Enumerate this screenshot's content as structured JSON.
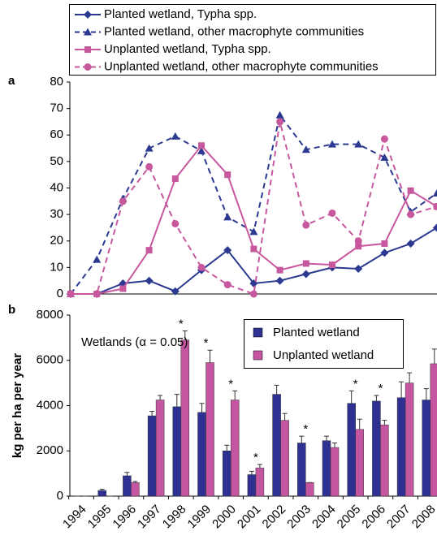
{
  "chart_data": [
    {
      "type": "line",
      "label": "a",
      "categories": [
        null,
        null,
        null,
        null,
        null,
        null,
        null,
        null,
        null,
        null,
        null,
        null,
        null,
        null,
        null
      ],
      "ylim": [
        0,
        80
      ],
      "yticks": [
        0,
        10,
        20,
        30,
        40,
        50,
        60,
        70,
        80
      ],
      "legend": "top",
      "series": [
        {
          "name": "Planted wetland, Typha spp.",
          "color": "#2b3990",
          "marker": "diamond",
          "dashed": false,
          "values": [
            0,
            0,
            4,
            5,
            1,
            9,
            16.5,
            4,
            5,
            7.5,
            10,
            9.5,
            15.5,
            19,
            25
          ]
        },
        {
          "name": "Planted wetland, other macrophyte communities",
          "color": "#2b3990",
          "marker": "triangle",
          "dashed": true,
          "values": [
            0,
            13,
            36,
            55,
            59.5,
            54,
            29,
            23.5,
            67.5,
            54.5,
            56.5,
            56.5,
            51.5,
            31,
            38
          ]
        },
        {
          "name": "Unplanted wetland, Typha spp.",
          "color": "#c8589e",
          "marker": "square",
          "dashed": false,
          "values": [
            0,
            0,
            2,
            16.5,
            43.5,
            56,
            45,
            17,
            9,
            11.5,
            11,
            18,
            19,
            39,
            33
          ]
        },
        {
          "name": "Unplanted wetland, other macrophyte communities",
          "color": "#c8589e",
          "marker": "circle",
          "dashed": true,
          "values": [
            0,
            0,
            35,
            48,
            26.5,
            10,
            3.5,
            0,
            65,
            26,
            30.5,
            20,
            58.5,
            30,
            33
          ]
        }
      ]
    },
    {
      "type": "bar",
      "label": "b",
      "y_label": "kg per ha per year",
      "annotation": "Wetlands (α = 0.05)",
      "categories": [
        "1994",
        "1995",
        "1996",
        "1997",
        "1998",
        "1999",
        "2000",
        "2001",
        "2002",
        "2003",
        "2004",
        "2005",
        "2006",
        "2007",
        "2008"
      ],
      "ylim": [
        0,
        8000
      ],
      "yticks": [
        0,
        2000,
        4000,
        6000,
        8000
      ],
      "legend": "upper right",
      "significance": [
        null,
        null,
        null,
        null,
        "*",
        "*",
        "*",
        "*",
        null,
        "*",
        null,
        "*",
        "*",
        null,
        null
      ],
      "series": [
        {
          "name": "Planted wetland",
          "color": "#2e3192",
          "values": [
            0,
            250,
            900,
            3550,
            3950,
            3700,
            2000,
            950,
            4500,
            2350,
            2450,
            4100,
            4200,
            4350,
            4250
          ],
          "errors": [
            0,
            50,
            150,
            200,
            550,
            400,
            250,
            150,
            400,
            300,
            200,
            550,
            250,
            700,
            500
          ]
        },
        {
          "name": "Unplanted wetland",
          "color": "#c455a0",
          "values": [
            0,
            0,
            600,
            4250,
            6900,
            5900,
            4250,
            1250,
            3350,
            600,
            2150,
            2950,
            3150,
            5000,
            5850
          ],
          "errors": [
            0,
            0,
            50,
            200,
            400,
            550,
            400,
            150,
            300,
            0,
            200,
            450,
            200,
            450,
            650
          ]
        }
      ]
    }
  ]
}
